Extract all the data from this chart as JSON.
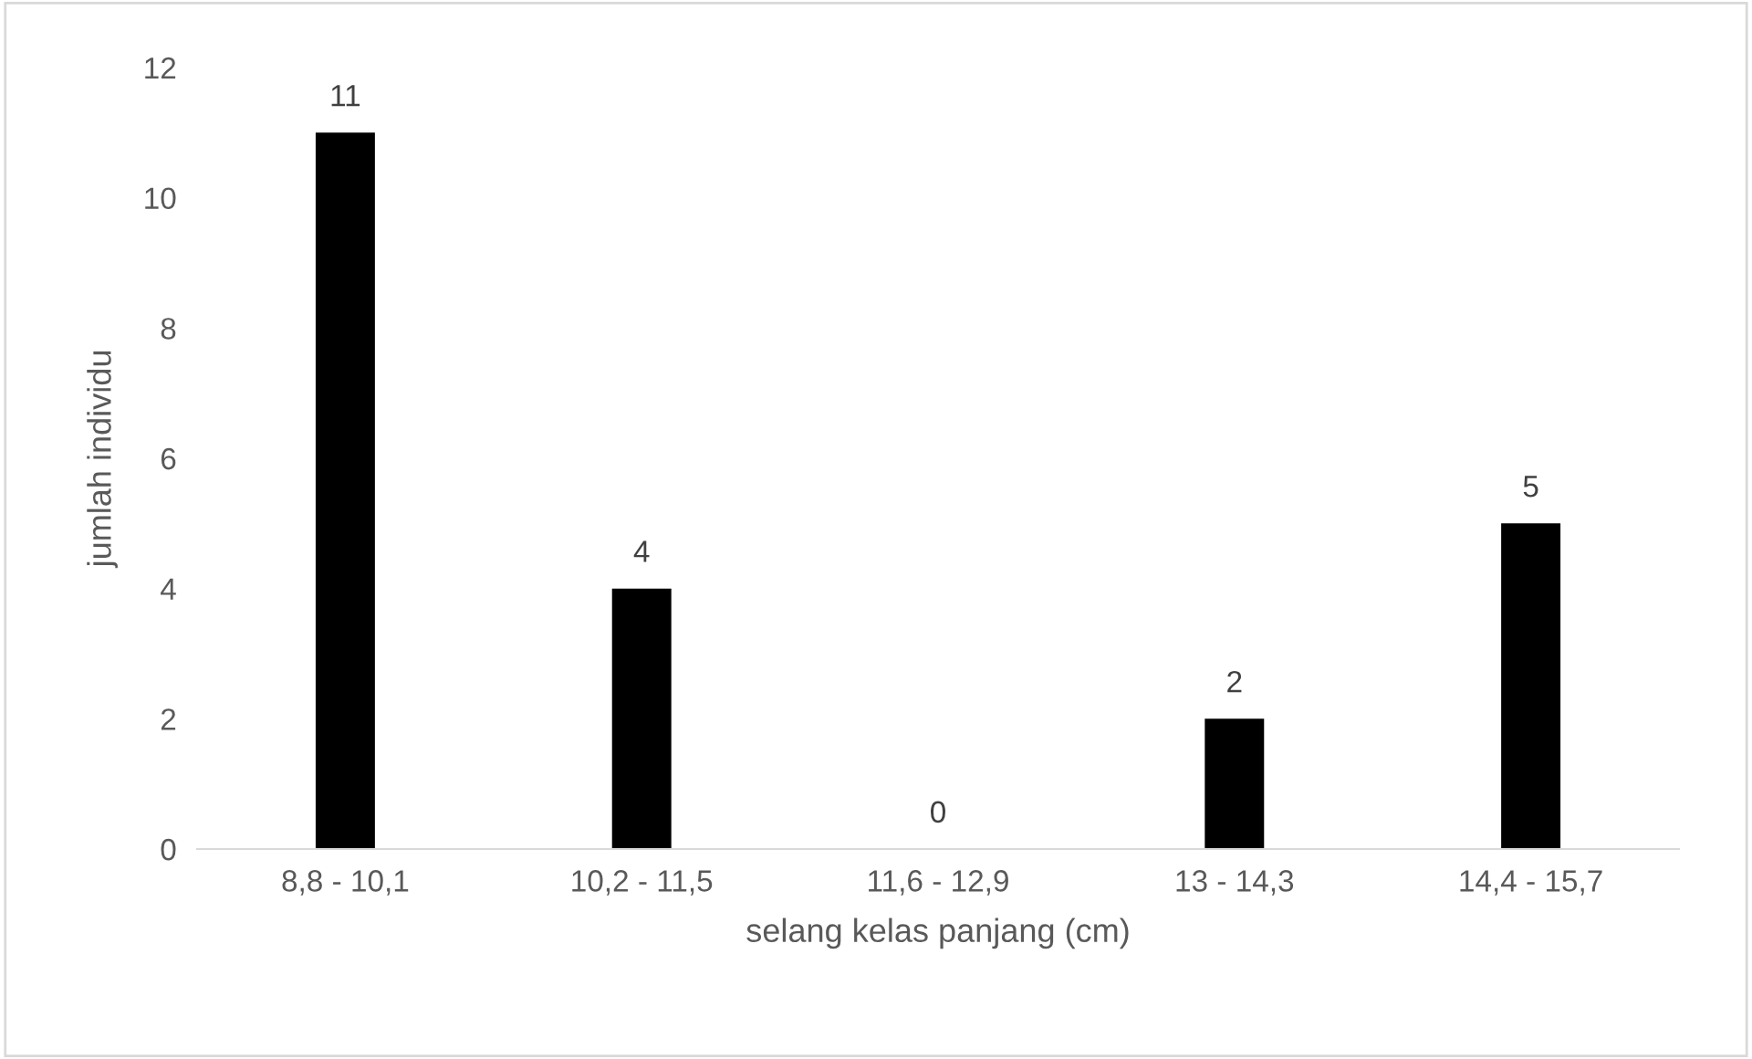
{
  "chart_data": {
    "type": "bar",
    "xlabel": "selang kelas panjang (cm)",
    "ylabel": "jumlah individu",
    "categories": [
      "8,8 - 10,1",
      "10,2 - 11,5",
      "11,6 - 12,9",
      "13 - 14,3",
      "14,4 - 15,7"
    ],
    "values": [
      11,
      4,
      0,
      2,
      5
    ],
    "color": "#000000",
    "ylim": [
      0,
      12
    ],
    "yticks": [
      0,
      2,
      4,
      6,
      8,
      10,
      12
    ],
    "grid": false,
    "data_labels": true
  }
}
